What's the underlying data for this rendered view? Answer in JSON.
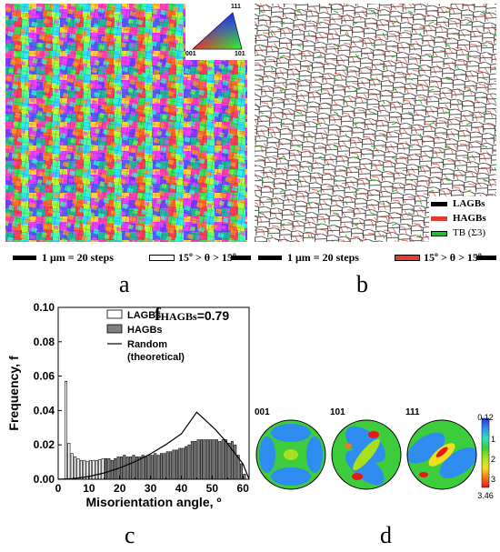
{
  "panels": {
    "a": {
      "letter": "a",
      "ipf_key": {
        "corner_top": "111",
        "corner_left": "001",
        "corner_right": "101"
      },
      "scalebar_text": "1 μm = 20 steps",
      "boundary_legend_text": "15º > θ > 15º"
    },
    "b": {
      "letter": "b",
      "legend": [
        {
          "label": "LAGBs",
          "color": "#000000"
        },
        {
          "label": "HAGBs",
          "color": "#e03c31"
        },
        {
          "label": "TB (Σ3)",
          "color": "#22c02a"
        }
      ],
      "scalebar_text": "1 μm = 20 steps",
      "boundary_legend_text": "15º > θ > 15º"
    },
    "c": {
      "letter": "c",
      "annotation": "f",
      "annotation_sub": "HAGBs",
      "annotation_value": "=0.79"
    },
    "d": {
      "letter": "d",
      "pole_figures": [
        "001",
        "101",
        "111"
      ],
      "colorbar_labels": [
        "0.12",
        "1",
        "2",
        "3",
        "3.46"
      ],
      "colorbar_colors": [
        "#2a36d8",
        "#2f8cf0",
        "#2ee0c0",
        "#3ccc3c",
        "#a8e020",
        "#f0e020",
        "#f07820",
        "#e81818"
      ]
    }
  },
  "chart_data": {
    "type": "bar",
    "xlabel": "Misorientation angle, º",
    "ylabel": "Frequency, f",
    "xlim": [
      0,
      62
    ],
    "ylim": [
      0,
      0.1
    ],
    "xticks": [
      0,
      10,
      20,
      30,
      40,
      50,
      60
    ],
    "yticks": [
      "0.00",
      "0.02",
      "0.04",
      "0.06",
      "0.08",
      "0.10"
    ],
    "legend": [
      "LAGBs",
      "HAGBs",
      "Random (theoretical)"
    ],
    "legend_position": "top-right",
    "series": [
      {
        "name": "LAGBs",
        "color": "#ffffff",
        "x": [
          2.5,
          3.5,
          4.5,
          5.5,
          6.5,
          7.5,
          8.5,
          9.5,
          10.5,
          11.5,
          12.5,
          13.5,
          14.5
        ],
        "values": [
          0.057,
          0.021,
          0.015,
          0.013,
          0.012,
          0.011,
          0.011,
          0.0105,
          0.011,
          0.011,
          0.011,
          0.0115,
          0.012
        ]
      },
      {
        "name": "HAGBs",
        "color": "#808080",
        "x": [
          15.5,
          16.5,
          17.5,
          18.5,
          19.5,
          20.5,
          21.5,
          22.5,
          23.5,
          24.5,
          25.5,
          26.5,
          27.5,
          28.5,
          29.5,
          30.5,
          31.5,
          32.5,
          33.5,
          34.5,
          35.5,
          36.5,
          37.5,
          38.5,
          39.5,
          40.5,
          41.5,
          42.5,
          43.5,
          44.5,
          45.5,
          46.5,
          47.5,
          48.5,
          49.5,
          50.5,
          51.5,
          52.5,
          53.5,
          54.5,
          55.5,
          56.5,
          57.5,
          58.5,
          59.5,
          60.5
        ],
        "values": [
          0.012,
          0.012,
          0.011,
          0.012,
          0.013,
          0.013,
          0.014,
          0.013,
          0.013,
          0.014,
          0.013,
          0.013,
          0.014,
          0.013,
          0.014,
          0.014,
          0.015,
          0.014,
          0.015,
          0.015,
          0.016,
          0.016,
          0.017,
          0.017,
          0.018,
          0.018,
          0.019,
          0.02,
          0.022,
          0.022,
          0.023,
          0.023,
          0.023,
          0.023,
          0.023,
          0.023,
          0.023,
          0.022,
          0.023,
          0.023,
          0.021,
          0.022,
          0.02,
          0.014,
          0.009,
          0.003
        ]
      }
    ],
    "random_curve": {
      "name": "Random (theoretical)",
      "points": [
        [
          0,
          0
        ],
        [
          5,
          0.0004
        ],
        [
          10,
          0.0016
        ],
        [
          15,
          0.0037
        ],
        [
          20,
          0.0066
        ],
        [
          25,
          0.0103
        ],
        [
          30,
          0.0148
        ],
        [
          35,
          0.0202
        ],
        [
          40,
          0.0264
        ],
        [
          45,
          0.039
        ],
        [
          48,
          0.034
        ],
        [
          51,
          0.029
        ],
        [
          54,
          0.023
        ],
        [
          57,
          0.016
        ],
        [
          60,
          0.009
        ],
        [
          62,
          0
        ]
      ]
    }
  }
}
